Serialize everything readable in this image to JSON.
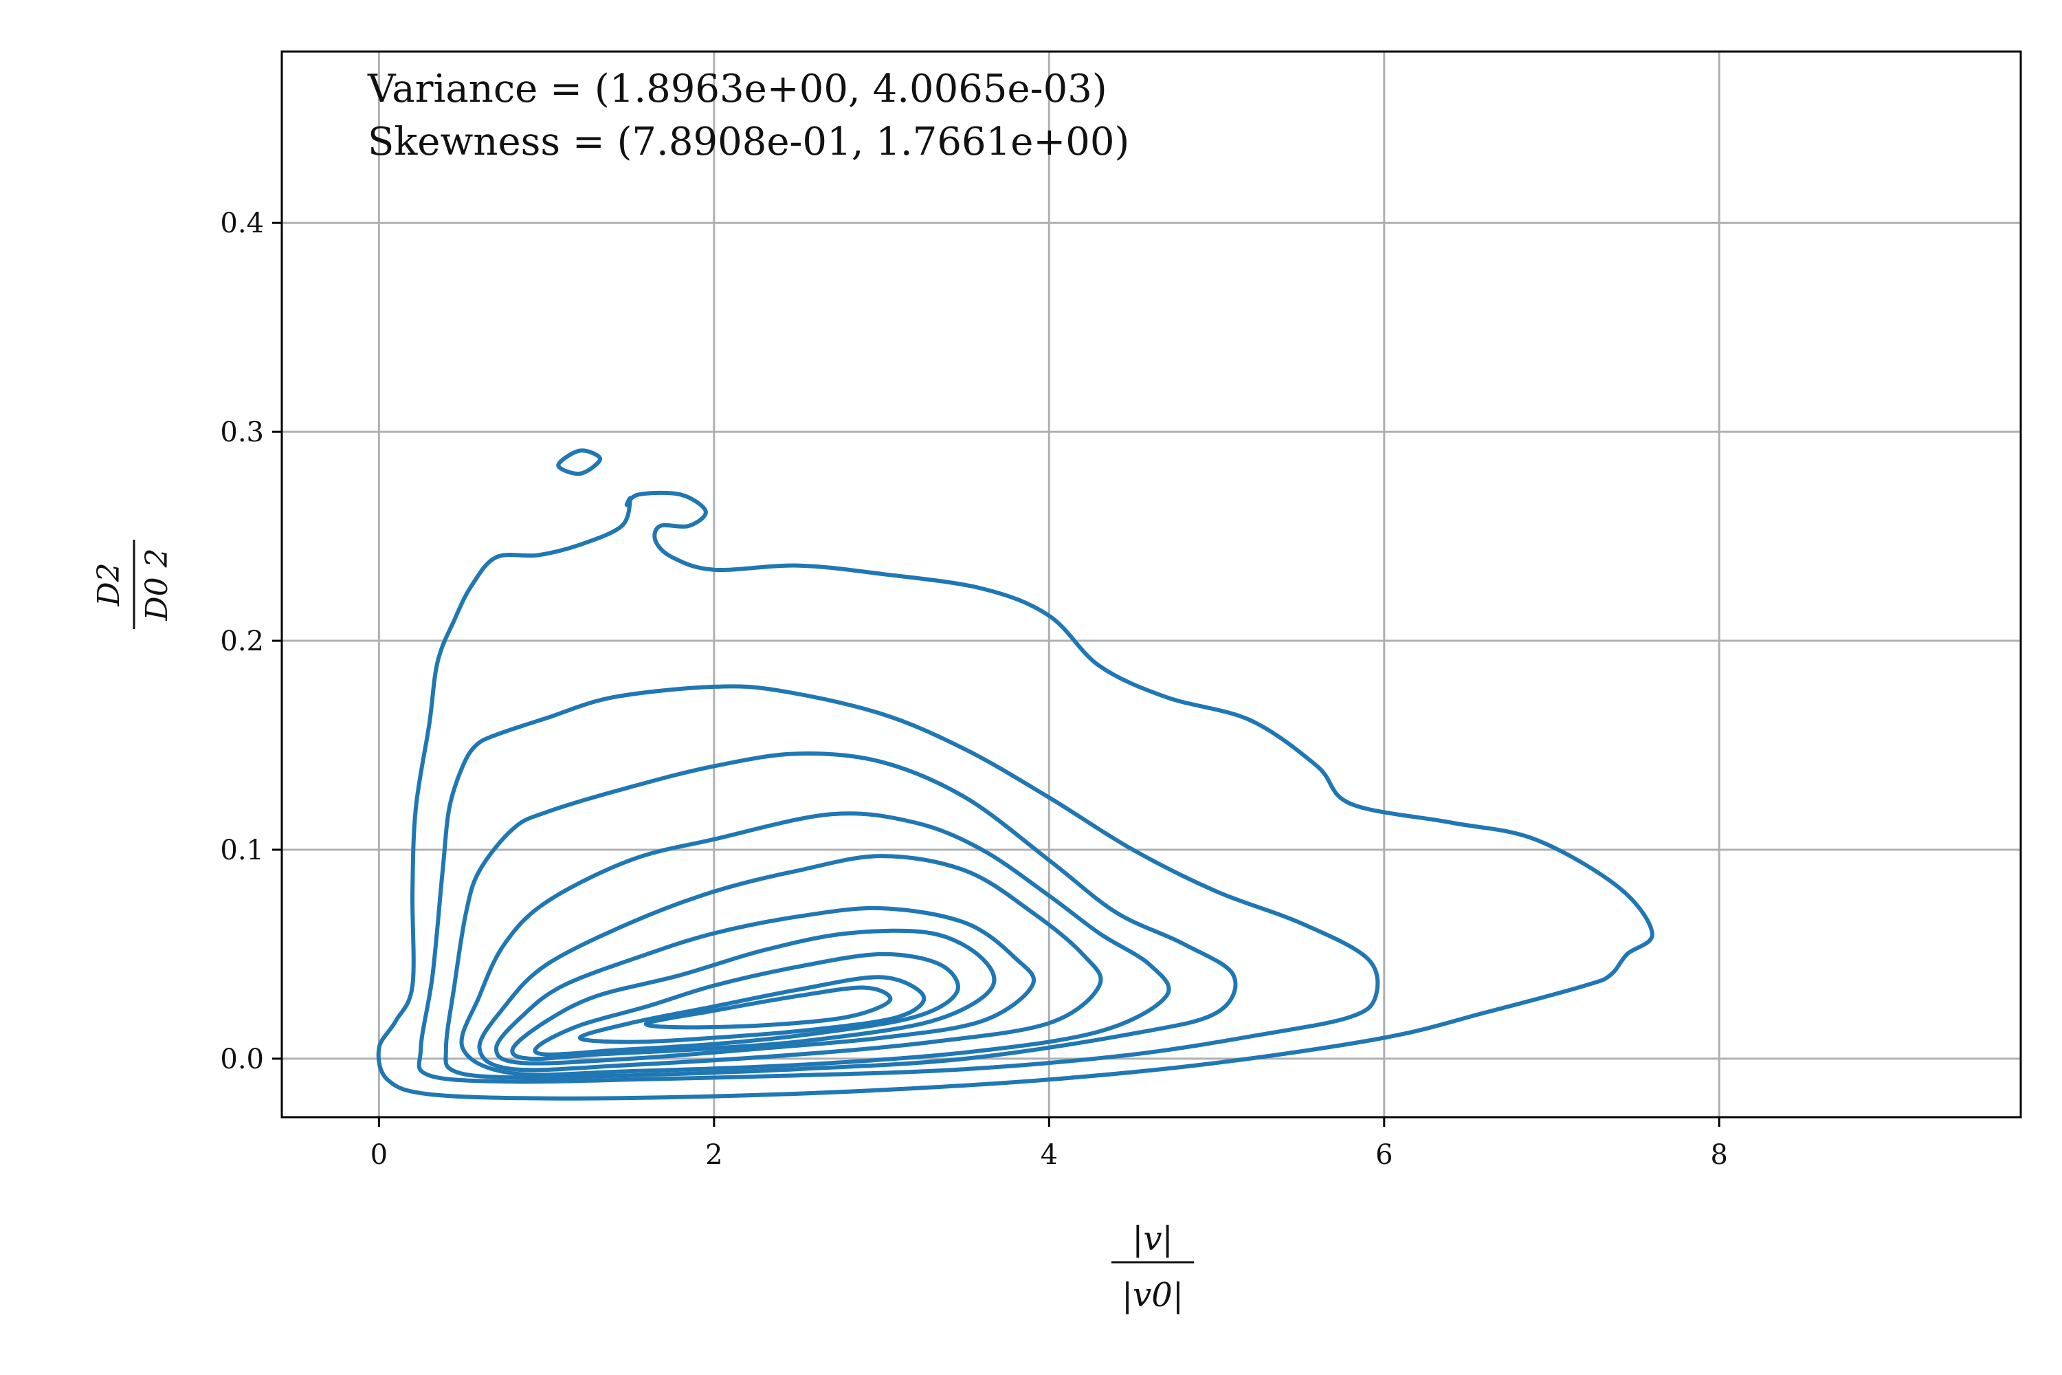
{
  "chart_data": {
    "type": "contour",
    "title": "",
    "xlabel": {
      "numerator": "|v|",
      "denominator": "|v0|"
    },
    "ylabel": {
      "numerator": "D2",
      "denominator": "D0 2"
    },
    "xlim": [
      -0.58,
      9.8
    ],
    "ylim": [
      -0.028,
      0.482
    ],
    "xticks": [
      0,
      2,
      4,
      6,
      8
    ],
    "xtick_labels": [
      "0",
      "2",
      "4",
      "6",
      "8"
    ],
    "yticks": [
      0.0,
      0.1,
      0.2,
      0.3,
      0.4
    ],
    "ytick_labels": [
      "0.0",
      "0.1",
      "0.2",
      "0.3",
      "0.4"
    ],
    "grid": true,
    "line_color": "#1f77b4",
    "annotations": [
      "Variance = (1.8963e+00, 4.0065e-03)",
      "Skewness = (7.8908e-01, 1.7661e+00)"
    ],
    "contours": [
      {
        "x": [
          0.0,
          0.1,
          0.2,
          0.2,
          0.22,
          0.3,
          0.35,
          0.45,
          0.55,
          0.7,
          0.95,
          1.2,
          1.45,
          1.5,
          1.48,
          1.55,
          1.8,
          1.95,
          1.85,
          1.68,
          1.65,
          1.75,
          2.0,
          2.5,
          3.0,
          3.6,
          4.0,
          4.3,
          4.7,
          5.2,
          5.6,
          5.8,
          6.4,
          6.9,
          7.4,
          7.6,
          7.45,
          7.35,
          7.2,
          6.6,
          6.0,
          5.0,
          4.0,
          3.0,
          2.0,
          1.0,
          0.3,
          0.05,
          0.0
        ],
        "y": [
          0.005,
          0.018,
          0.035,
          0.08,
          0.12,
          0.16,
          0.19,
          0.21,
          0.226,
          0.24,
          0.241,
          0.246,
          0.255,
          0.268,
          0.265,
          0.27,
          0.27,
          0.262,
          0.255,
          0.255,
          0.248,
          0.24,
          0.234,
          0.236,
          0.232,
          0.225,
          0.212,
          0.188,
          0.173,
          0.162,
          0.14,
          0.122,
          0.113,
          0.105,
          0.082,
          0.06,
          0.05,
          0.04,
          0.035,
          0.022,
          0.01,
          -0.002,
          -0.01,
          -0.015,
          -0.018,
          -0.019,
          -0.017,
          -0.01,
          0.005
        ]
      },
      {
        "x": [
          1.07,
          1.2,
          1.32,
          1.2,
          1.07
        ],
        "y": [
          0.284,
          0.291,
          0.287,
          0.28,
          0.284
        ]
      },
      {
        "x": [
          0.25,
          0.32,
          0.38,
          0.42,
          0.5,
          0.58,
          0.7,
          1.0,
          1.4,
          2.0,
          2.4,
          3.0,
          3.5,
          4.0,
          4.5,
          5.0,
          5.5,
          5.9,
          5.95,
          5.8,
          5.3,
          4.5,
          3.5,
          2.5,
          1.5,
          0.8,
          0.3,
          0.25
        ],
        "y": [
          0.005,
          0.04,
          0.09,
          0.12,
          0.14,
          0.15,
          0.155,
          0.163,
          0.173,
          0.178,
          0.176,
          0.165,
          0.148,
          0.125,
          0.1,
          0.08,
          0.065,
          0.048,
          0.03,
          0.02,
          0.012,
          0.002,
          -0.005,
          -0.008,
          -0.01,
          -0.011,
          -0.008,
          0.005
        ]
      },
      {
        "x": [
          0.4,
          0.45,
          0.52,
          0.6,
          0.8,
          1.0,
          1.5,
          2.0,
          2.5,
          3.0,
          3.5,
          4.0,
          4.4,
          4.8,
          5.1,
          5.0,
          4.5,
          3.5,
          2.5,
          1.5,
          0.8,
          0.45,
          0.4
        ],
        "y": [
          0.005,
          0.035,
          0.07,
          0.09,
          0.11,
          0.118,
          0.13,
          0.14,
          0.146,
          0.142,
          0.125,
          0.095,
          0.07,
          0.055,
          0.04,
          0.022,
          0.012,
          0.0,
          -0.005,
          -0.008,
          -0.009,
          -0.006,
          0.005
        ]
      },
      {
        "x": [
          0.5,
          0.6,
          0.75,
          1.0,
          1.5,
          2.0,
          2.7,
          3.2,
          3.6,
          4.0,
          4.3,
          4.6,
          4.7,
          4.3,
          3.5,
          2.5,
          1.5,
          0.8,
          0.5
        ],
        "y": [
          0.005,
          0.03,
          0.055,
          0.075,
          0.095,
          0.105,
          0.117,
          0.113,
          0.1,
          0.078,
          0.06,
          0.045,
          0.03,
          0.013,
          0.003,
          -0.003,
          -0.006,
          -0.007,
          0.005
        ]
      },
      {
        "x": [
          0.6,
          0.75,
          1.0,
          1.5,
          2.0,
          2.5,
          3.0,
          3.5,
          3.9,
          4.2,
          4.3,
          4.0,
          3.3,
          2.5,
          1.5,
          0.8,
          0.6
        ],
        "y": [
          0.005,
          0.025,
          0.045,
          0.065,
          0.08,
          0.09,
          0.097,
          0.09,
          0.07,
          0.05,
          0.035,
          0.017,
          0.008,
          0.002,
          -0.003,
          -0.005,
          0.005
        ]
      },
      {
        "x": [
          0.7,
          0.85,
          1.1,
          1.6,
          2.0,
          2.5,
          3.0,
          3.5,
          3.8,
          3.9,
          3.6,
          3.0,
          2.3,
          1.5,
          0.85,
          0.7
        ],
        "y": [
          0.005,
          0.02,
          0.035,
          0.05,
          0.06,
          0.068,
          0.072,
          0.065,
          0.048,
          0.035,
          0.018,
          0.01,
          0.005,
          0.0,
          -0.002,
          0.005
        ]
      },
      {
        "x": [
          0.8,
          1.0,
          1.3,
          1.8,
          2.3,
          2.8,
          3.3,
          3.6,
          3.65,
          3.3,
          2.6,
          2.0,
          1.3,
          0.9,
          0.8
        ],
        "y": [
          0.005,
          0.018,
          0.03,
          0.04,
          0.052,
          0.06,
          0.06,
          0.048,
          0.033,
          0.018,
          0.009,
          0.005,
          0.002,
          0.0,
          0.005
        ]
      },
      {
        "x": [
          0.95,
          1.2,
          1.6,
          2.0,
          2.5,
          3.0,
          3.35,
          3.45,
          3.2,
          2.6,
          2.0,
          1.4,
          1.0,
          0.95
        ],
        "y": [
          0.006,
          0.016,
          0.025,
          0.035,
          0.044,
          0.05,
          0.045,
          0.032,
          0.02,
          0.012,
          0.007,
          0.004,
          0.002,
          0.006
        ]
      },
      {
        "x": [
          1.2,
          1.5,
          2.0,
          2.5,
          3.0,
          3.25,
          3.1,
          2.6,
          2.0,
          1.5,
          1.2
        ],
        "y": [
          0.01,
          0.017,
          0.025,
          0.033,
          0.039,
          0.03,
          0.02,
          0.014,
          0.01,
          0.008,
          0.01
        ]
      },
      {
        "x": [
          1.6,
          2.0,
          2.5,
          2.9,
          3.05,
          2.8,
          2.3,
          1.8,
          1.6
        ],
        "y": [
          0.017,
          0.023,
          0.03,
          0.034,
          0.028,
          0.02,
          0.016,
          0.015,
          0.017
        ]
      }
    ]
  }
}
